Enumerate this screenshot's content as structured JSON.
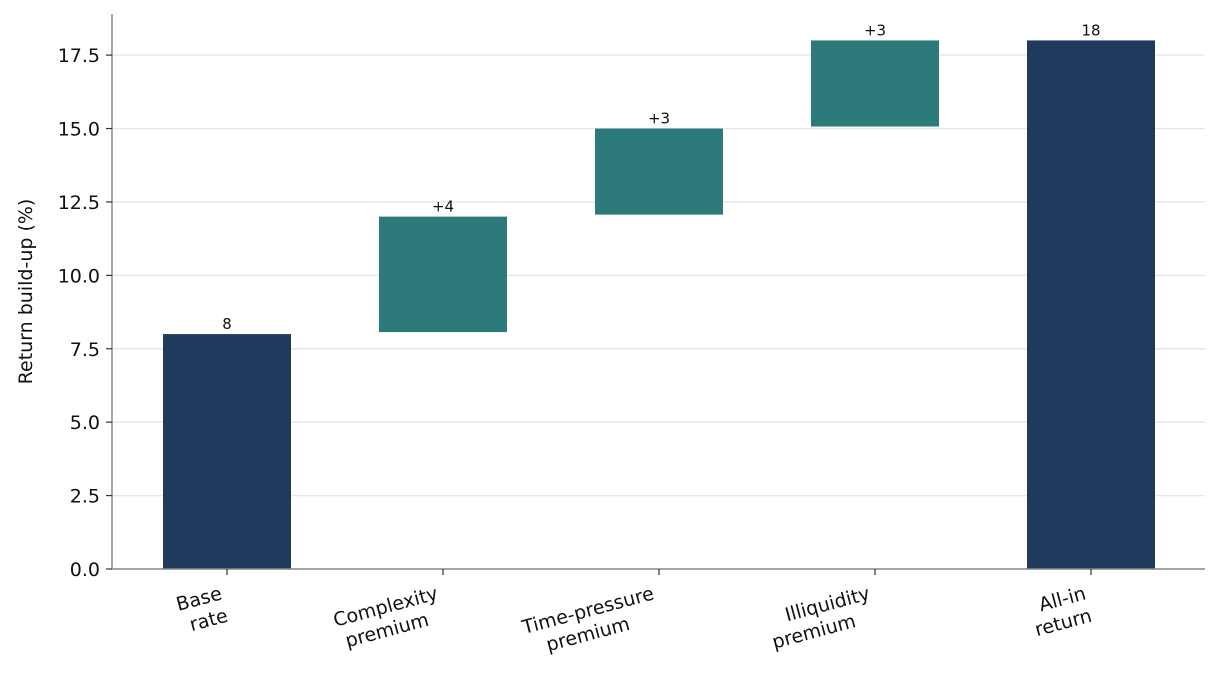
{
  "chart_data": {
    "type": "bar",
    "subtype": "waterfall",
    "title": "",
    "xlabel": "",
    "ylabel": "Return build-up (%)",
    "ylim": [
      0,
      18.9
    ],
    "yticks": [
      "0.0",
      "2.5",
      "5.0",
      "7.5",
      "10.0",
      "12.5",
      "15.0",
      "17.5"
    ],
    "grid": "horizontal",
    "categories": [
      [
        "Base",
        "rate"
      ],
      [
        "Complexity",
        "premium"
      ],
      [
        "Time-pressure",
        "premium"
      ],
      [
        "Illiquidity",
        "premium"
      ],
      [
        "All-in",
        "return"
      ]
    ],
    "bars": [
      {
        "start": 0,
        "end": 8,
        "label": "8",
        "kind": "total"
      },
      {
        "start": 8,
        "end": 12,
        "label": "+4",
        "kind": "increment"
      },
      {
        "start": 12,
        "end": 15,
        "label": "+3",
        "kind": "increment"
      },
      {
        "start": 15,
        "end": 18,
        "label": "+3",
        "kind": "increment"
      },
      {
        "start": 0,
        "end": 18,
        "label": "18",
        "kind": "total"
      }
    ],
    "colors": {
      "total": "#1f3a5c",
      "increment": "#2d7a7b",
      "grid": "#e3e6ea",
      "axis": "#888888"
    }
  }
}
